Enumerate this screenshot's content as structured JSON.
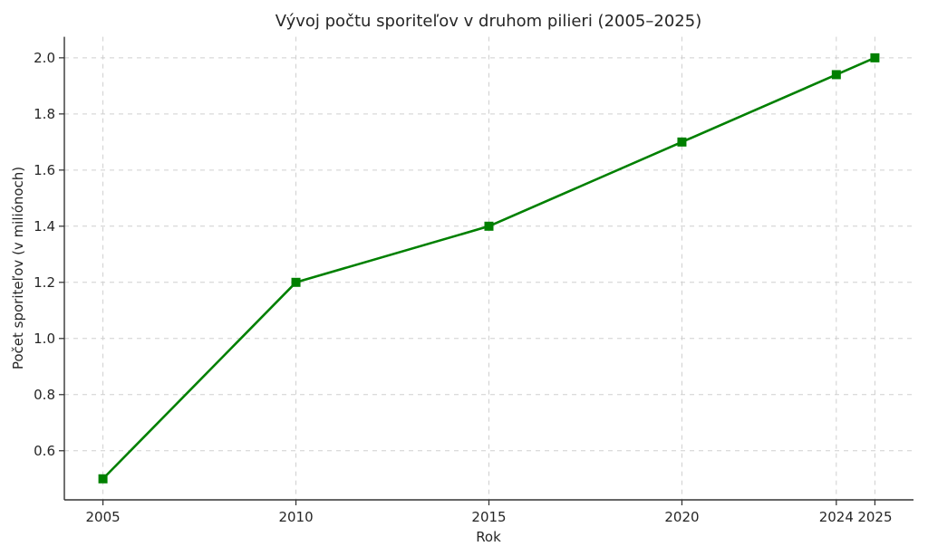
{
  "figure": {
    "background": "#ffffff"
  },
  "chart_data": {
    "type": "line",
    "title": "Vývoj počtu sporiteľov v druhom pilieri (2005–2025)",
    "xlabel": "Rok",
    "ylabel": "Počet sporiteľov (v miliónoch)",
    "x": [
      2005,
      2010,
      2015,
      2020,
      2024,
      2025
    ],
    "y": [
      0.5,
      1.2,
      1.4,
      1.7,
      1.94,
      2.0
    ],
    "xticks": [
      2005,
      2010,
      2015,
      2020,
      2024,
      2025
    ],
    "yticks": [
      0.6,
      0.8,
      1.0,
      1.2,
      1.4,
      1.6,
      1.8,
      2.0
    ],
    "xlim": [
      2004,
      2026
    ],
    "ylim": [
      0.425,
      2.075
    ],
    "grid": true,
    "grid_style": "dashed",
    "legend_position": "none",
    "marker": "square",
    "colors": {
      "line": "#008000",
      "marker": "#008000",
      "grid": "#cfcfcf",
      "spine": "#333333",
      "text": "#262626"
    }
  }
}
